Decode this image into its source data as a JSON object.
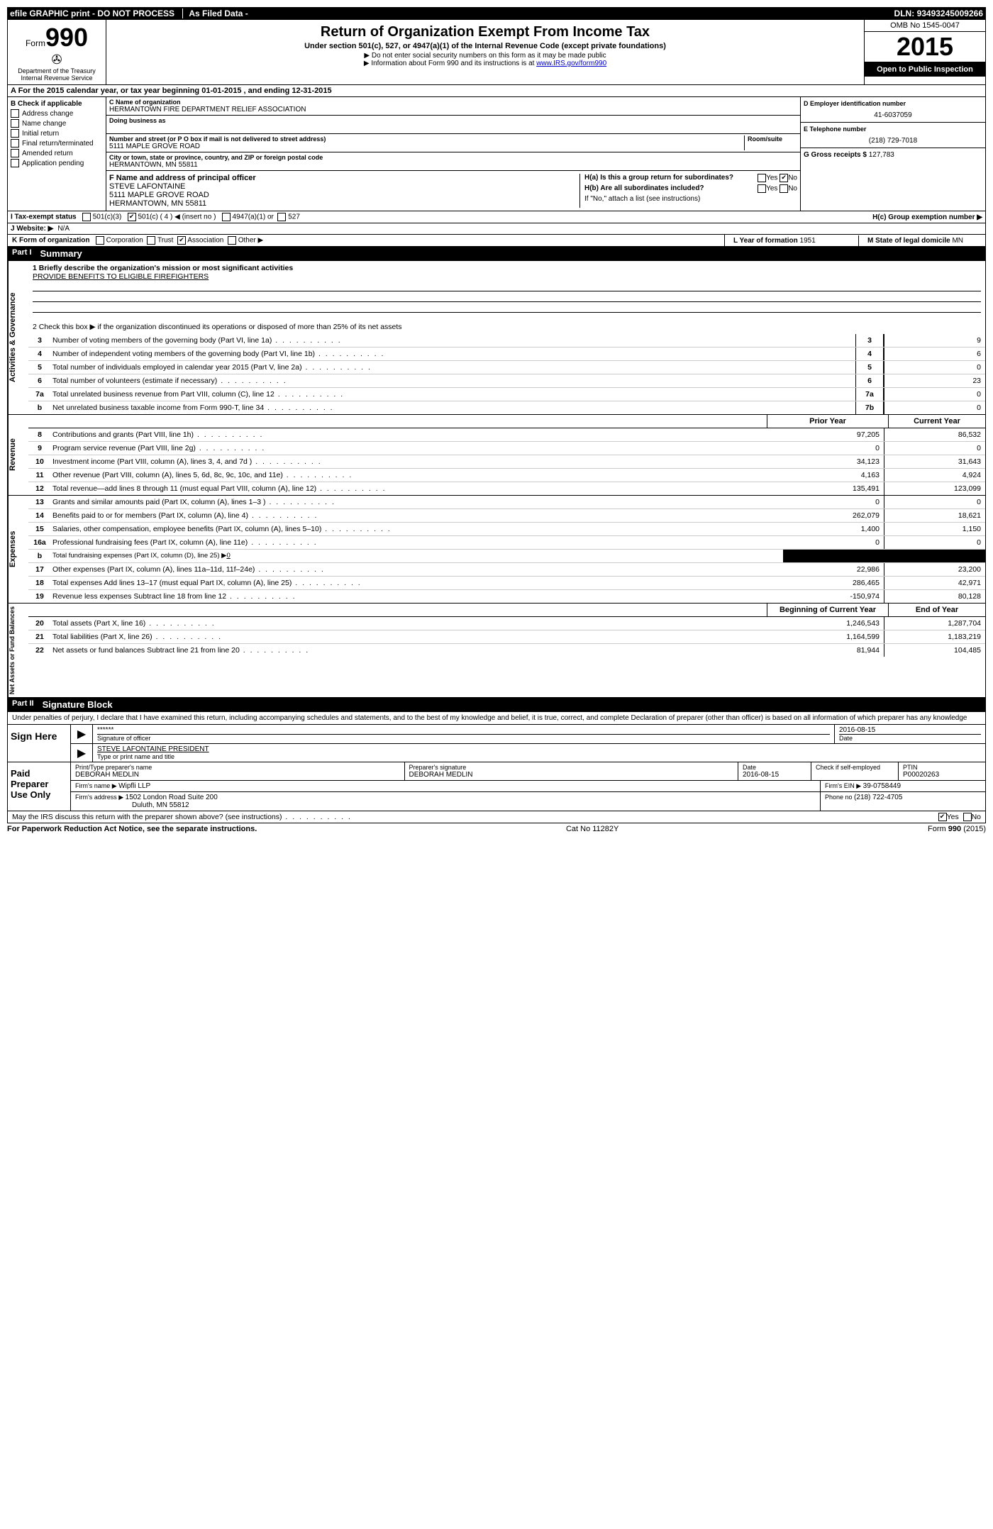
{
  "topbar": {
    "efile": "efile GRAPHIC print - DO NOT PROCESS",
    "asfiled": "As Filed Data -",
    "dln_label": "DLN:",
    "dln": "93493245009266"
  },
  "header": {
    "form_word": "Form",
    "form_num": "990",
    "dept": "Department of the Treasury",
    "irs": "Internal Revenue Service",
    "title": "Return of Organization Exempt From Income Tax",
    "subtitle": "Under section 501(c), 527, or 4947(a)(1) of the Internal Revenue Code (except private foundations)",
    "note1": "▶ Do not enter social security numbers on this form as it may be made public",
    "note2_pre": "▶ Information about Form 990 and its instructions is at ",
    "note2_link": "www.IRS.gov/form990",
    "omb": "OMB No 1545-0047",
    "year": "2015",
    "open": "Open to Public Inspection"
  },
  "rowA": {
    "text_pre": "A  For the 2015 calendar year, or tax year beginning ",
    "begin": "01-01-2015",
    "mid": "   , and ending ",
    "end": "12-31-2015"
  },
  "colB": {
    "label": "B  Check if applicable",
    "items": [
      "Address change",
      "Name change",
      "Initial return",
      "Final return/terminated",
      "Amended return",
      "Application pending"
    ]
  },
  "colC": {
    "name_label": "C Name of organization",
    "name": "HERMANTOWN FIRE DEPARTMENT RELIEF ASSOCIATION",
    "dba_label": "Doing business as",
    "addr_label": "Number and street (or P O  box if mail is not delivered to street address)",
    "room_label": "Room/suite",
    "addr": "5111 MAPLE GROVE ROAD",
    "city_label": "City or town, state or province, country, and ZIP or foreign postal code",
    "city": "HERMANTOWN, MN  55811",
    "f_label": "F   Name and address of principal officer",
    "f_name": "STEVE LAFONTAINE",
    "f_addr1": "5111 MAPLE GROVE ROAD",
    "f_addr2": "HERMANTOWN, MN  55811"
  },
  "colD": {
    "ein_label": "D Employer identification number",
    "ein": "41-6037059",
    "tel_label": "E Telephone number",
    "tel": "(218) 729-7018",
    "gross_label": "G Gross receipts $ ",
    "gross": "127,783",
    "ha_label": "H(a)  Is this a group return for subordinates?",
    "hb_label": "H(b)  Are all subordinates included?",
    "hb_note": "If \"No,\" attach a list  (see instructions)",
    "hc_label": "H(c)   Group exemption number ▶",
    "yes": "Yes",
    "no": "No"
  },
  "rowI": {
    "label": "I   Tax-exempt status",
    "opt1": "501(c)(3)",
    "opt2": "501(c) ( 4 ) ◀ (insert no )",
    "opt3": "4947(a)(1) or",
    "opt4": "527"
  },
  "rowJ": {
    "label": "J   Website: ▶",
    "val": "N/A"
  },
  "rowK": {
    "label": "K Form of organization",
    "opts": [
      "Corporation",
      "Trust",
      "Association",
      "Other ▶"
    ],
    "l_label": "L Year of formation  ",
    "l_val": "1951",
    "m_label": "M State of legal domicile ",
    "m_val": "MN"
  },
  "part1": {
    "label": "Part I",
    "title": "Summary",
    "line1_label": "1 Briefly describe the organization's mission or most significant activities",
    "line1_val": "PROVIDE BENEFITS TO ELIGIBLE FIREFIGHTERS",
    "line2": "2  Check this box ▶     if the organization discontinued its operations or disposed of more than 25% of its net assets",
    "governance": [
      {
        "n": "3",
        "t": "Number of voting members of the governing body (Part VI, line 1a)",
        "r": "3",
        "v": "9"
      },
      {
        "n": "4",
        "t": "Number of independent voting members of the governing body (Part VI, line 1b)",
        "r": "4",
        "v": "6"
      },
      {
        "n": "5",
        "t": "Total number of individuals employed in calendar year 2015 (Part V, line 2a)",
        "r": "5",
        "v": "0"
      },
      {
        "n": "6",
        "t": "Total number of volunteers (estimate if necessary)",
        "r": "6",
        "v": "23"
      },
      {
        "n": "7a",
        "t": "Total unrelated business revenue from Part VIII, column (C), line 12",
        "r": "7a",
        "v": "0"
      },
      {
        "n": "b",
        "t": "Net unrelated business taxable income from Form 990-T, line 34",
        "r": "7b",
        "v": "0"
      }
    ],
    "prior_label": "Prior Year",
    "current_label": "Current Year",
    "revenue": [
      {
        "n": "8",
        "t": "Contributions and grants (Part VIII, line 1h)",
        "p": "97,205",
        "c": "86,532"
      },
      {
        "n": "9",
        "t": "Program service revenue (Part VIII, line 2g)",
        "p": "0",
        "c": "0"
      },
      {
        "n": "10",
        "t": "Investment income (Part VIII, column (A), lines 3, 4, and 7d )",
        "p": "34,123",
        "c": "31,643"
      },
      {
        "n": "11",
        "t": "Other revenue (Part VIII, column (A), lines 5, 6d, 8c, 9c, 10c, and 11e)",
        "p": "4,163",
        "c": "4,924"
      },
      {
        "n": "12",
        "t": "Total revenue—add lines 8 through 11 (must equal Part VIII, column (A), line 12)",
        "p": "135,491",
        "c": "123,099"
      }
    ],
    "expenses": [
      {
        "n": "13",
        "t": "Grants and similar amounts paid (Part IX, column (A), lines 1–3 )",
        "p": "0",
        "c": "0"
      },
      {
        "n": "14",
        "t": "Benefits paid to or for members (Part IX, column (A), line 4)",
        "p": "262,079",
        "c": "18,621"
      },
      {
        "n": "15",
        "t": "Salaries, other compensation, employee benefits (Part IX, column (A), lines 5–10)",
        "p": "1,400",
        "c": "1,150"
      },
      {
        "n": "16a",
        "t": "Professional fundraising fees (Part IX, column (A), line 11e)",
        "p": "0",
        "c": "0"
      },
      {
        "n": "b",
        "t": "Total fundraising expenses (Part IX, column (D), line 25) ▶",
        "p": "BLACKOUT",
        "c": "BLACKOUT",
        "u": "0"
      },
      {
        "n": "17",
        "t": "Other expenses (Part IX, column (A), lines 11a–11d, 11f–24e)",
        "p": "22,986",
        "c": "23,200"
      },
      {
        "n": "18",
        "t": "Total expenses  Add lines 13–17 (must equal Part IX, column (A), line 25)",
        "p": "286,465",
        "c": "42,971"
      },
      {
        "n": "19",
        "t": "Revenue less expenses  Subtract line 18 from line 12",
        "p": "-150,974",
        "c": "80,128"
      }
    ],
    "begin_label": "Beginning of Current Year",
    "end_label": "End of Year",
    "netassets": [
      {
        "n": "20",
        "t": "Total assets (Part X, line 16)",
        "p": "1,246,543",
        "c": "1,287,704"
      },
      {
        "n": "21",
        "t": "Total liabilities (Part X, line 26)",
        "p": "1,164,599",
        "c": "1,183,219"
      },
      {
        "n": "22",
        "t": "Net assets or fund balances  Subtract line 21 from line 20",
        "p": "81,944",
        "c": "104,485"
      }
    ],
    "side_gov": "Activities & Governance",
    "side_rev": "Revenue",
    "side_exp": "Expenses",
    "side_net": "Net Assets or Fund Balances"
  },
  "part2": {
    "label": "Part II",
    "title": "Signature Block",
    "perjury": "Under penalties of perjury, I declare that I have examined this return, including accompanying schedules and statements, and to the best of my knowledge and belief, it is true, correct, and complete  Declaration of preparer (other than officer) is based on all information of which preparer has any knowledge"
  },
  "sign": {
    "here": "Sign Here",
    "stars": "******",
    "sig_of": "Signature of officer",
    "date": "2016-08-15",
    "date_label": "Date",
    "name": "STEVE LAFONTAINE PRESIDENT",
    "name_label": "Type or print name and title"
  },
  "paid": {
    "label": "Paid Preparer Use Only",
    "prep_name_label": "Print/Type preparer's name",
    "prep_name": "DEBORAH MEDLIN",
    "prep_sig_label": "Preparer's signature",
    "prep_sig": "DEBORAH MEDLIN",
    "date_label": "Date",
    "date": "2016-08-15",
    "check_label": "Check      if self-employed",
    "ptin_label": "PTIN",
    "ptin": "P00020263",
    "firm_name_label": "Firm's name    ▶ ",
    "firm_name": "Wipfli LLP",
    "firm_ein_label": "Firm's EIN ▶ ",
    "firm_ein": "39-0758449",
    "firm_addr_label": "Firm's address ▶ ",
    "firm_addr1": "1502 London Road Suite 200",
    "firm_addr2": "Duluth, MN  55812",
    "phone_label": "Phone no  ",
    "phone": "(218) 722-4705"
  },
  "footer": {
    "discuss": "May the IRS discuss this return with the preparer shown above? (see instructions)",
    "yes": "Yes",
    "no": "No",
    "paperwork": "For Paperwork Reduction Act Notice, see the separate instructions.",
    "cat": "Cat No  11282Y",
    "form": "Form 990 (2015)"
  }
}
